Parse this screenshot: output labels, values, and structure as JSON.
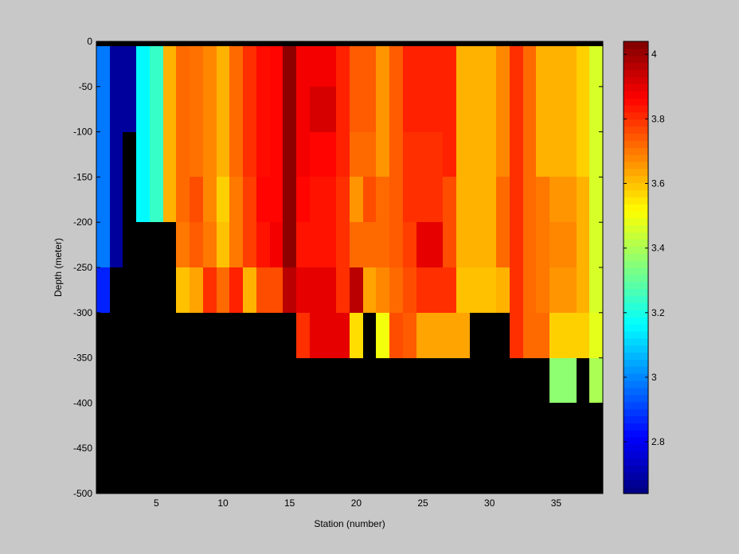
{
  "colors": {
    "figure_background": "#c8c8c8",
    "no_data": "#000000",
    "colormap": "jet"
  },
  "chart_data": {
    "type": "heatmap",
    "xlabel": "Station (number)",
    "ylabel": "Depth (meter)",
    "xlim": [
      0.5,
      38.5
    ],
    "ylim": [
      -500,
      0
    ],
    "clim": [
      2.64,
      4.04
    ],
    "x_ticks": [
      5,
      10,
      15,
      20,
      25,
      30,
      35
    ],
    "y_ticks": [
      0,
      -50,
      -100,
      -150,
      -200,
      -250,
      -300,
      -350,
      -400,
      -450,
      -500
    ],
    "colorbar_ticks": [
      2.8,
      3,
      3.2,
      3.4,
      3.6,
      3.8,
      4
    ],
    "legend": "colorbar right",
    "stations": [
      1,
      2,
      3,
      4,
      5,
      6,
      7,
      8,
      9,
      10,
      11,
      12,
      13,
      14,
      15,
      16,
      17,
      18,
      19,
      20,
      21,
      22,
      23,
      24,
      25,
      26,
      27,
      28,
      29,
      30,
      31,
      32,
      33,
      34,
      35,
      36,
      37,
      38
    ],
    "depth_bins_top": [
      0,
      -50,
      -100,
      -150,
      -200,
      -250,
      -300,
      -350,
      -400,
      -450
    ],
    "depth_bin_size": 50,
    "surface_band_value": null,
    "values": [
      [
        2.98,
        2.68,
        2.68,
        3.16,
        3.24,
        3.62,
        3.72,
        3.71,
        3.68,
        3.62,
        3.72,
        3.8,
        3.85,
        3.86,
        4.02,
        3.88,
        3.88,
        3.88,
        3.82,
        3.74,
        3.74,
        3.66,
        3.74,
        3.82,
        3.82,
        3.82,
        3.82,
        3.62,
        3.62,
        3.62,
        3.68,
        3.8,
        3.72,
        3.62,
        3.62,
        3.62,
        3.58,
        3.46
      ],
      [
        2.98,
        2.68,
        2.68,
        3.16,
        3.24,
        3.62,
        3.72,
        3.71,
        3.68,
        3.62,
        3.72,
        3.8,
        3.85,
        3.86,
        4.02,
        3.88,
        3.92,
        3.92,
        3.82,
        3.74,
        3.74,
        3.66,
        3.74,
        3.82,
        3.82,
        3.82,
        3.82,
        3.62,
        3.62,
        3.62,
        3.68,
        3.8,
        3.72,
        3.62,
        3.62,
        3.62,
        3.58,
        3.46
      ],
      [
        2.98,
        2.68,
        null,
        3.16,
        3.24,
        3.62,
        3.72,
        3.71,
        3.68,
        3.62,
        3.72,
        3.8,
        3.85,
        3.86,
        4.02,
        3.88,
        3.86,
        3.86,
        3.82,
        3.72,
        3.72,
        3.66,
        3.74,
        3.8,
        3.8,
        3.8,
        3.82,
        3.62,
        3.62,
        3.62,
        3.68,
        3.8,
        3.72,
        3.62,
        3.62,
        3.62,
        3.58,
        3.46
      ],
      [
        2.98,
        2.68,
        null,
        3.16,
        3.24,
        3.62,
        3.72,
        3.76,
        3.68,
        3.58,
        3.7,
        3.78,
        3.86,
        3.86,
        4.02,
        3.86,
        3.84,
        3.84,
        3.8,
        3.66,
        3.76,
        3.72,
        3.74,
        3.8,
        3.8,
        3.8,
        3.76,
        3.62,
        3.62,
        3.62,
        3.72,
        3.8,
        3.72,
        3.7,
        3.66,
        3.66,
        3.62,
        3.46
      ],
      [
        2.98,
        2.68,
        null,
        null,
        null,
        null,
        3.7,
        3.74,
        3.7,
        3.6,
        3.7,
        3.78,
        3.84,
        3.88,
        4.02,
        3.84,
        3.84,
        3.84,
        3.8,
        3.72,
        3.72,
        3.72,
        3.74,
        3.78,
        3.9,
        3.9,
        3.76,
        3.62,
        3.62,
        3.62,
        3.72,
        3.8,
        3.72,
        3.7,
        3.68,
        3.68,
        3.62,
        3.46
      ],
      [
        2.86,
        null,
        null,
        null,
        null,
        null,
        3.6,
        3.64,
        3.8,
        3.72,
        3.82,
        3.62,
        3.76,
        3.76,
        3.96,
        3.9,
        3.9,
        3.9,
        3.8,
        3.96,
        3.64,
        3.68,
        3.72,
        3.76,
        3.8,
        3.8,
        3.8,
        3.6,
        3.6,
        3.6,
        3.62,
        3.8,
        3.72,
        3.7,
        3.66,
        3.66,
        3.62,
        3.46
      ],
      [
        null,
        null,
        null,
        null,
        null,
        null,
        null,
        null,
        null,
        null,
        null,
        null,
        null,
        null,
        null,
        3.8,
        3.9,
        3.9,
        3.9,
        3.56,
        null,
        3.5,
        3.76,
        3.74,
        3.64,
        3.64,
        3.64,
        3.64,
        null,
        null,
        null,
        3.8,
        3.72,
        3.72,
        3.58,
        3.58,
        3.58,
        3.48
      ],
      [
        null,
        null,
        null,
        null,
        null,
        null,
        null,
        null,
        null,
        null,
        null,
        null,
        null,
        null,
        null,
        null,
        null,
        null,
        null,
        null,
        null,
        null,
        null,
        null,
        null,
        null,
        null,
        null,
        null,
        null,
        null,
        null,
        null,
        null,
        3.36,
        3.36,
        null,
        3.4
      ],
      [
        null,
        null,
        null,
        null,
        null,
        null,
        null,
        null,
        null,
        null,
        null,
        null,
        null,
        null,
        null,
        null,
        null,
        null,
        null,
        null,
        null,
        null,
        null,
        null,
        null,
        null,
        null,
        null,
        null,
        null,
        null,
        null,
        null,
        null,
        null,
        null,
        null,
        null
      ],
      [
        null,
        null,
        null,
        null,
        null,
        null,
        null,
        null,
        null,
        null,
        null,
        null,
        null,
        null,
        null,
        null,
        null,
        null,
        null,
        null,
        null,
        null,
        null,
        null,
        null,
        null,
        null,
        null,
        null,
        null,
        null,
        null,
        null,
        null,
        null,
        null,
        null,
        null
      ]
    ]
  }
}
